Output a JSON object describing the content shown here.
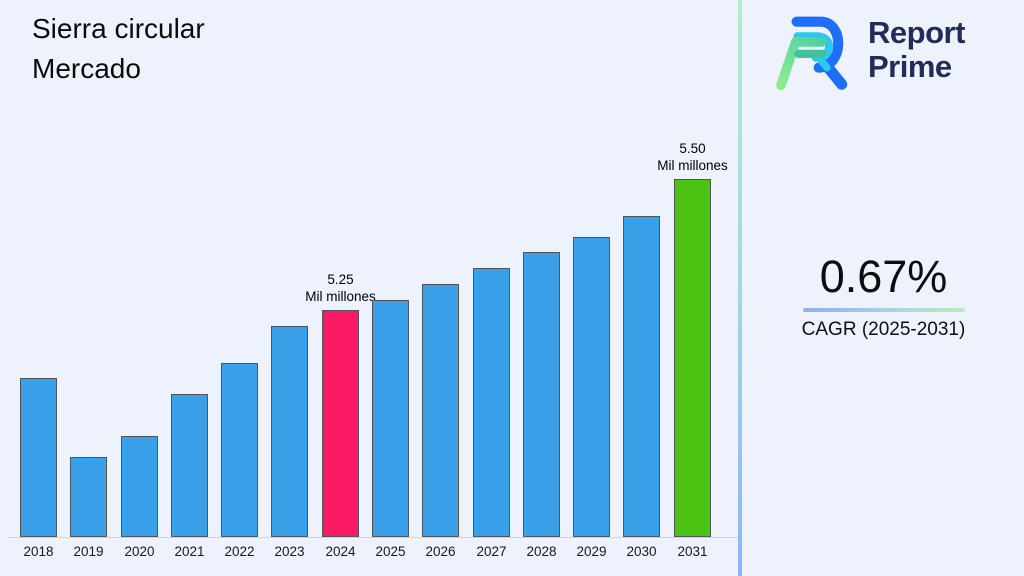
{
  "title": {
    "line1": "Sierra circular",
    "line2": "Mercado"
  },
  "logo": {
    "line1": "Report",
    "line2": "Prime"
  },
  "cagr": {
    "value": "0.67%",
    "label": "CAGR (2025-2031)"
  },
  "chart_data": {
    "type": "bar",
    "title": "Sierra circular Mercado",
    "categories": [
      "2018",
      "2019",
      "2020",
      "2021",
      "2022",
      "2023",
      "2024",
      "2025",
      "2026",
      "2027",
      "2028",
      "2029",
      "2030",
      "2031"
    ],
    "values": [
      5.12,
      4.97,
      5.01,
      5.09,
      5.15,
      5.22,
      5.25,
      5.27,
      5.3,
      5.33,
      5.36,
      5.39,
      5.43,
      5.5
    ],
    "unit": "Mil millones",
    "default_bar_color": "#3aa0e9",
    "bar_border_color": "#50555e",
    "highlights": {
      "2024": "#fb1a66",
      "2031": "#4cc213"
    },
    "annotations": [
      {
        "category": "2024",
        "value_label": "5.25",
        "unit_label": "Mil millones"
      },
      {
        "category": "2031",
        "value_label": "5.50",
        "unit_label": "Mil millones"
      }
    ],
    "y_baseline_value": 4.817,
    "ylim": [
      4.817,
      5.62
    ],
    "grid": false,
    "legend": "none",
    "xlabel": "",
    "ylabel": ""
  },
  "colors": {
    "background": "#edf2fc",
    "divider_top": "#b2edca",
    "divider_bottom": "#8fb4f4",
    "logo_text": "#222c58"
  }
}
